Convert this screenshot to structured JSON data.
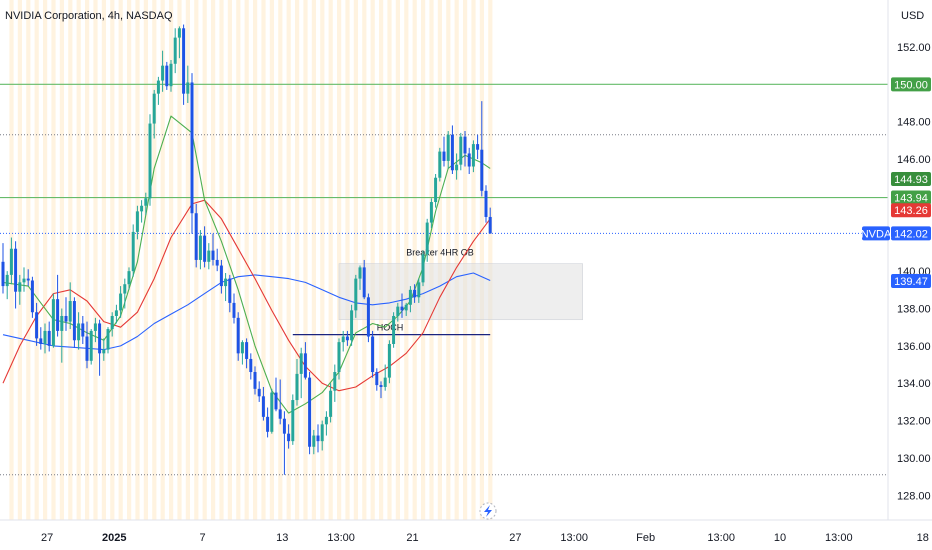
{
  "header": {
    "title": "NVIDIA Corporation, 4h, NASDAQ",
    "currency": "USD"
  },
  "colors": {
    "up": "#26a69a",
    "down": "#1e53e5",
    "wick": "#1e53e5",
    "ma_fast": "#4caf50",
    "ma_mid": "#e53935",
    "ma_slow": "#2962ff",
    "hline_green": "#66bb6a",
    "hline_dotted": "#787b86",
    "session_bg": "#fff3e0",
    "badge_green": "#43a047",
    "badge_red": "#e53935",
    "badge_blue": "#2962ff"
  },
  "chart_data": {
    "type": "candlestick",
    "symbol": "NVDA",
    "timeframe": "4h",
    "exchange": "NASDAQ",
    "ylim": [
      127.0,
      154.3
    ],
    "y_ticks": [
      "152.00",
      "150.00",
      "148.00",
      "146.00",
      "144.00",
      "142.00",
      "140.00",
      "138.00",
      "136.00",
      "134.00",
      "132.00",
      "130.00",
      "128.00"
    ],
    "x_ticks": [
      {
        "label": "27",
        "bar": 10.5,
        "bold": false
      },
      {
        "label": "2025",
        "bar": 26.5,
        "bold": true
      },
      {
        "label": "7",
        "bar": 47.5,
        "bold": false
      },
      {
        "label": "13",
        "bar": 66.5,
        "bold": false
      },
      {
        "label": "13:00",
        "bar": 80.5,
        "bold": false
      },
      {
        "label": "21",
        "bar": 97.5,
        "bold": false
      },
      {
        "label": "27",
        "bar": 122,
        "bold": false
      },
      {
        "label": "13:00",
        "bar": 136,
        "bold": false
      },
      {
        "label": "Feb",
        "bar": 153,
        "bold": false
      },
      {
        "label": "13:00",
        "bar": 171,
        "bold": false
      },
      {
        "label": "10",
        "bar": 185,
        "bold": false
      },
      {
        "label": "13:00",
        "bar": 199,
        "bold": false
      },
      {
        "label": "18",
        "bar": 219,
        "bold": false
      }
    ],
    "ohlc": [
      [
        140.5,
        141.5,
        138.8,
        139.2
      ],
      [
        139.2,
        140.0,
        138.5,
        139.8
      ],
      [
        139.8,
        141.8,
        139.3,
        141.2
      ],
      [
        141.2,
        141.6,
        138.0,
        138.9
      ],
      [
        138.9,
        139.8,
        138.2,
        139.4
      ],
      [
        139.4,
        140.2,
        138.9,
        139.6
      ],
      [
        139.6,
        140.1,
        139.2,
        139.5
      ],
      [
        139.5,
        139.7,
        137.5,
        137.8
      ],
      [
        137.8,
        138.3,
        136.0,
        136.4
      ],
      [
        136.4,
        137.0,
        135.8,
        136.1
      ],
      [
        136.1,
        137.2,
        135.6,
        136.8
      ],
      [
        136.8,
        137.3,
        135.7,
        136.0
      ],
      [
        136.0,
        138.8,
        135.9,
        138.5
      ],
      [
        138.5,
        139.8,
        136.5,
        136.8
      ],
      [
        136.8,
        138.0,
        135.1,
        137.6
      ],
      [
        137.6,
        138.6,
        136.8,
        137.3
      ],
      [
        137.3,
        139.4,
        136.9,
        138.4
      ],
      [
        138.4,
        138.6,
        135.9,
        136.3
      ],
      [
        136.3,
        137.8,
        135.8,
        137.2
      ],
      [
        137.2,
        137.6,
        136.1,
        136.5
      ],
      [
        136.5,
        137.3,
        134.8,
        135.2
      ],
      [
        135.2,
        136.9,
        135.0,
        136.8
      ],
      [
        136.8,
        137.5,
        136.2,
        137.2
      ],
      [
        137.2,
        137.4,
        134.4,
        135.6
      ],
      [
        135.6,
        136.4,
        135.2,
        135.8
      ],
      [
        135.8,
        137.0,
        135.6,
        136.9
      ],
      [
        136.9,
        137.8,
        136.5,
        137.6
      ],
      [
        137.6,
        138.2,
        137.2,
        137.9
      ],
      [
        137.9,
        139.2,
        137.5,
        138.8
      ],
      [
        138.8,
        139.6,
        138.0,
        139.3
      ],
      [
        139.3,
        140.2,
        139.0,
        140.0
      ],
      [
        140.0,
        142.5,
        139.7,
        142.1
      ],
      [
        142.1,
        143.5,
        141.7,
        143.2
      ],
      [
        143.2,
        143.8,
        142.6,
        143.5
      ],
      [
        143.5,
        144.2,
        143.0,
        143.9
      ],
      [
        143.9,
        148.4,
        143.5,
        147.9
      ],
      [
        147.9,
        149.7,
        147.1,
        149.5
      ],
      [
        149.5,
        150.4,
        148.9,
        150.2
      ],
      [
        150.2,
        151.8,
        149.6,
        151.0
      ],
      [
        151.0,
        151.2,
        149.7,
        149.9
      ],
      [
        149.9,
        151.3,
        149.6,
        151.1
      ],
      [
        151.1,
        153.0,
        150.6,
        152.5
      ],
      [
        152.5,
        153.1,
        151.4,
        153.0
      ],
      [
        153.0,
        153.2,
        148.9,
        149.5
      ],
      [
        149.5,
        151.0,
        149.0,
        150.1
      ],
      [
        150.1,
        150.6,
        142.0,
        143.1
      ],
      [
        143.1,
        143.6,
        140.2,
        140.6
      ],
      [
        140.6,
        142.2,
        140.1,
        141.9
      ],
      [
        141.9,
        142.4,
        140.2,
        140.5
      ],
      [
        140.5,
        141.5,
        140.1,
        141.1
      ],
      [
        141.1,
        142.0,
        140.3,
        140.6
      ],
      [
        140.6,
        141.2,
        140.0,
        140.3
      ],
      [
        140.3,
        140.6,
        138.8,
        139.2
      ],
      [
        139.2,
        139.9,
        138.4,
        139.6
      ],
      [
        139.6,
        139.8,
        137.8,
        138.3
      ],
      [
        138.3,
        138.8,
        137.2,
        137.5
      ],
      [
        137.5,
        137.8,
        135.2,
        135.6
      ],
      [
        135.6,
        136.3,
        135.0,
        136.2
      ],
      [
        136.2,
        136.4,
        134.8,
        135.3
      ],
      [
        135.3,
        135.6,
        134.2,
        134.6
      ],
      [
        134.6,
        134.9,
        133.4,
        133.7
      ],
      [
        133.7,
        134.1,
        133.0,
        133.3
      ],
      [
        133.3,
        133.8,
        132.0,
        132.2
      ],
      [
        132.2,
        132.7,
        131.1,
        131.4
      ],
      [
        131.4,
        133.7,
        131.3,
        133.5
      ],
      [
        133.5,
        134.3,
        132.5,
        132.6
      ],
      [
        132.6,
        134.2,
        131.8,
        132.1
      ],
      [
        132.1,
        132.5,
        129.1,
        131.3
      ],
      [
        131.3,
        131.8,
        130.5,
        130.9
      ],
      [
        130.9,
        133.4,
        130.7,
        133.1
      ],
      [
        133.1,
        135.3,
        132.8,
        134.5
      ],
      [
        134.5,
        135.9,
        133.2,
        135.6
      ],
      [
        135.6,
        136.2,
        134.2,
        134.3
      ],
      [
        134.3,
        134.6,
        130.2,
        130.6
      ],
      [
        130.6,
        131.5,
        130.2,
        131.2
      ],
      [
        131.2,
        131.8,
        130.3,
        130.9
      ],
      [
        130.9,
        132.0,
        130.4,
        131.8
      ],
      [
        131.8,
        132.5,
        131.2,
        132.2
      ],
      [
        132.2,
        134.0,
        131.9,
        133.6
      ],
      [
        133.6,
        135.0,
        133.0,
        134.6
      ],
      [
        134.6,
        136.4,
        134.2,
        136.2
      ],
      [
        136.2,
        136.8,
        135.7,
        136.5
      ],
      [
        136.5,
        136.8,
        136.0,
        136.3
      ],
      [
        136.3,
        138.2,
        136.0,
        137.9
      ],
      [
        137.9,
        139.8,
        137.5,
        139.6
      ],
      [
        139.6,
        140.3,
        139.0,
        140.2
      ],
      [
        140.2,
        140.6,
        138.5,
        138.6
      ],
      [
        138.6,
        138.8,
        136.2,
        136.5
      ],
      [
        136.5,
        136.8,
        134.3,
        134.6
      ],
      [
        134.6,
        134.8,
        133.6,
        133.9
      ],
      [
        133.9,
        134.1,
        133.2,
        133.8
      ],
      [
        133.8,
        135.0,
        133.6,
        134.3
      ],
      [
        134.3,
        136.3,
        134.0,
        136.1
      ],
      [
        136.1,
        137.8,
        135.9,
        137.6
      ],
      [
        137.6,
        138.3,
        137.3,
        138.1
      ],
      [
        138.1,
        138.8,
        137.5,
        137.9
      ],
      [
        137.9,
        138.3,
        137.6,
        138.2
      ],
      [
        138.2,
        139.2,
        137.8,
        139.0
      ],
      [
        139.0,
        139.3,
        138.3,
        138.6
      ],
      [
        138.6,
        139.6,
        138.3,
        139.4
      ],
      [
        139.4,
        141.1,
        139.2,
        140.9
      ],
      [
        140.9,
        142.8,
        140.5,
        142.6
      ],
      [
        142.6,
        143.9,
        142.3,
        143.7
      ],
      [
        143.7,
        145.2,
        143.4,
        145.0
      ],
      [
        145.0,
        146.6,
        144.8,
        146.4
      ],
      [
        146.4,
        147.2,
        145.6,
        145.9
      ],
      [
        145.9,
        147.5,
        145.5,
        147.3
      ],
      [
        147.3,
        147.8,
        145.2,
        145.4
      ],
      [
        145.4,
        146.3,
        144.9,
        145.7
      ],
      [
        145.7,
        147.4,
        145.4,
        147.2
      ],
      [
        147.2,
        147.5,
        145.6,
        146.3
      ],
      [
        146.3,
        146.6,
        145.2,
        145.6
      ],
      [
        145.6,
        147.0,
        145.3,
        146.8
      ],
      [
        146.8,
        147.3,
        146.0,
        146.5
      ],
      [
        146.5,
        149.1,
        144.0,
        144.3
      ],
      [
        144.3,
        144.6,
        142.6,
        142.9
      ],
      [
        142.9,
        143.4,
        142.0,
        142.02
      ]
    ],
    "ma_fast_label": "",
    "ma_fast": [
      [
        0,
        139.4
      ],
      [
        6,
        139.2
      ],
      [
        9,
        138.3
      ],
      [
        12,
        137.4
      ],
      [
        16,
        137.2
      ],
      [
        20,
        136.7
      ],
      [
        24,
        136.3
      ],
      [
        28,
        137.6
      ],
      [
        32,
        140.5
      ],
      [
        36,
        145.5
      ],
      [
        40,
        148.3
      ],
      [
        45,
        147.4
      ],
      [
        48,
        143.8
      ],
      [
        52,
        141.6
      ],
      [
        56,
        139.0
      ],
      [
        60,
        136.0
      ],
      [
        64,
        133.6
      ],
      [
        68,
        132.4
      ],
      [
        72,
        132.9
      ],
      [
        76,
        133.5
      ],
      [
        80,
        134.6
      ],
      [
        84,
        136.7
      ],
      [
        88,
        137.2
      ],
      [
        91,
        137.0
      ],
      [
        94,
        137.6
      ],
      [
        97,
        138.4
      ],
      [
        100,
        140.2
      ],
      [
        103,
        143.2
      ],
      [
        106,
        145.5
      ],
      [
        110,
        146.2
      ],
      [
        114,
        145.8
      ],
      [
        116,
        145.5
      ]
    ],
    "ma_mid": [
      [
        0,
        134.0
      ],
      [
        4,
        136.0
      ],
      [
        8,
        137.6
      ],
      [
        12,
        138.8
      ],
      [
        16,
        139.0
      ],
      [
        20,
        138.4
      ],
      [
        24,
        137.3
      ],
      [
        28,
        137.0
      ],
      [
        32,
        137.8
      ],
      [
        36,
        139.6
      ],
      [
        40,
        141.8
      ],
      [
        45,
        143.6
      ],
      [
        48,
        143.8
      ],
      [
        52,
        142.8
      ],
      [
        56,
        141.2
      ],
      [
        60,
        139.6
      ],
      [
        64,
        137.9
      ],
      [
        68,
        136.3
      ],
      [
        72,
        134.9
      ],
      [
        76,
        134.0
      ],
      [
        80,
        133.6
      ],
      [
        84,
        133.8
      ],
      [
        88,
        134.4
      ],
      [
        92,
        134.9
      ],
      [
        96,
        135.6
      ],
      [
        100,
        136.7
      ],
      [
        104,
        138.6
      ],
      [
        108,
        140.2
      ],
      [
        112,
        141.6
      ],
      [
        116,
        142.8
      ]
    ],
    "ma_slow": [
      [
        0,
        136.6
      ],
      [
        6,
        136.3
      ],
      [
        12,
        136.0
      ],
      [
        18,
        135.9
      ],
      [
        24,
        135.8
      ],
      [
        28,
        136.0
      ],
      [
        32,
        136.5
      ],
      [
        36,
        137.2
      ],
      [
        40,
        137.7
      ],
      [
        44,
        138.2
      ],
      [
        48,
        138.8
      ],
      [
        52,
        139.4
      ],
      [
        56,
        139.7
      ],
      [
        60,
        139.8
      ],
      [
        64,
        139.7
      ],
      [
        68,
        139.6
      ],
      [
        72,
        139.4
      ],
      [
        76,
        139.0
      ],
      [
        80,
        138.6
      ],
      [
        84,
        138.3
      ],
      [
        88,
        138.2
      ],
      [
        92,
        138.3
      ],
      [
        96,
        138.5
      ],
      [
        100,
        138.8
      ],
      [
        104,
        139.2
      ],
      [
        108,
        139.7
      ],
      [
        112,
        139.9
      ],
      [
        116,
        139.5
      ]
    ],
    "horizontal_lines": [
      {
        "price": 150.0,
        "style": "solid-green"
      },
      {
        "price": 147.3,
        "style": "dotted-grey"
      },
      {
        "price": 143.94,
        "style": "solid-green"
      },
      {
        "price": 129.1,
        "style": "dotted-grey"
      }
    ],
    "last_price_line": 142.02,
    "zone": {
      "label": "Breaker 4HR OB",
      "bar_start": 80,
      "bar_end": 138,
      "top": 140.4,
      "bottom": 137.4
    },
    "choch": {
      "label": "HOCH",
      "bar_start": 69,
      "bar_end": 116,
      "price": 136.6
    },
    "session_bands": {
      "first_bar": 2,
      "every": 2,
      "last_bar": 116
    },
    "price_badges": [
      {
        "label": "150.00",
        "price": 150.0,
        "color": "badge_green",
        "bg": "#43a047"
      },
      {
        "label": "144.93",
        "price": 144.93,
        "color": "badge_green",
        "bg": "#388e3c"
      },
      {
        "label": "143.94",
        "price": 143.94,
        "color": "badge_green",
        "bg": "#43a047"
      },
      {
        "label": "143.26",
        "price": 143.26,
        "color": "badge_red",
        "bg": "#e53935"
      },
      {
        "label": "142.02",
        "price": 142.02,
        "color": "badge_blue",
        "bg": "#2962ff"
      },
      {
        "label": "139.47",
        "price": 139.47,
        "color": "badge_blue",
        "bg": "#2962ff"
      }
    ],
    "symbol_tag": "NVDA"
  }
}
